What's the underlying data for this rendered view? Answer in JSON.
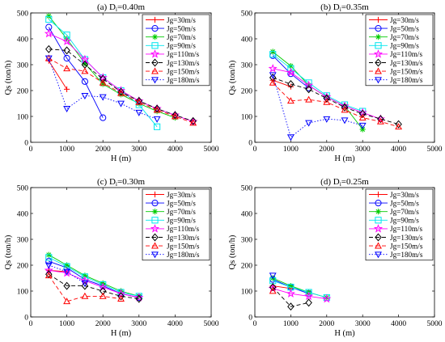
{
  "figure": {
    "series_defs": [
      {
        "name": "Jg=30m/s",
        "color": "#ff0000",
        "marker": "plus",
        "dash": ""
      },
      {
        "name": "Jg=50m/s",
        "color": "#0000ff",
        "marker": "circle",
        "dash": ""
      },
      {
        "name": "Jg=70m/s",
        "color": "#00cc00",
        "marker": "star",
        "dash": ""
      },
      {
        "name": "Jg=90m/s",
        "color": "#00e5ee",
        "marker": "square",
        "dash": ""
      },
      {
        "name": "Jg=110m/s",
        "color": "#ff00ff",
        "marker": "pentagram",
        "dash": ""
      },
      {
        "name": "Jg=130m/s",
        "color": "#000000",
        "marker": "diamond",
        "dash": "5,3"
      },
      {
        "name": "Jg=150m/s",
        "color": "#ff0000",
        "marker": "triangle-up",
        "dash": "5,3"
      },
      {
        "name": "Jg=180m/s",
        "color": "#0000ff",
        "marker": "triangle-down",
        "dash": "1.5,2"
      }
    ]
  },
  "chart_data": [
    {
      "type": "line",
      "title": "(a) D",
      "title_sub": "i",
      "title_tail": "=0.40m",
      "xlabel": "H (m)",
      "ylabel": "Qs (ton/h)",
      "xlim": [
        0,
        5000
      ],
      "ylim": [
        0,
        500
      ],
      "xticks": [
        0,
        1000,
        2000,
        3000,
        4000,
        5000
      ],
      "yticks": [
        0,
        100,
        200,
        300,
        400,
        500
      ],
      "legend_position": "top-right",
      "series": [
        {
          "name": "Jg=30m/s",
          "x": [
            500,
            1000
          ],
          "y": [
            315,
            205
          ]
        },
        {
          "name": "Jg=50m/s",
          "x": [
            500,
            1000,
            1500,
            2000
          ],
          "y": [
            445,
            325,
            235,
            95
          ]
        },
        {
          "name": "Jg=70m/s",
          "x": [
            500,
            1000,
            1500,
            2000,
            2500,
            3000,
            3500,
            4000
          ],
          "y": [
            488,
            400,
            305,
            225,
            185,
            150,
            120,
            95
          ]
        },
        {
          "name": "Jg=90m/s",
          "x": [
            500,
            1000,
            1500,
            2000,
            2500,
            3000,
            3500
          ],
          "y": [
            475,
            415,
            320,
            250,
            200,
            145,
            60
          ]
        },
        {
          "name": "Jg=110m/s",
          "x": [
            500,
            1000,
            1500,
            2000,
            2500,
            3000,
            3500,
            4000,
            4500
          ],
          "y": [
            420,
            390,
            320,
            250,
            200,
            160,
            130,
            105,
            80
          ]
        },
        {
          "name": "Jg=130m/s",
          "x": [
            500,
            1000,
            1500,
            2000,
            2500,
            3000,
            3500,
            4000,
            4500
          ],
          "y": [
            360,
            355,
            300,
            245,
            195,
            160,
            130,
            105,
            82
          ]
        },
        {
          "name": "Jg=150m/s",
          "x": [
            500,
            1000,
            1500,
            2000,
            2500,
            3000,
            3500,
            4000,
            4500
          ],
          "y": [
            325,
            285,
            275,
            230,
            190,
            155,
            125,
            100,
            75
          ]
        },
        {
          "name": "Jg=180m/s",
          "x": [
            500,
            1000,
            1500,
            2000,
            2500,
            3000,
            3500
          ],
          "y": [
            325,
            130,
            180,
            175,
            150,
            115,
            90
          ]
        }
      ]
    },
    {
      "type": "line",
      "title": "(b) D",
      "title_sub": "i",
      "title_tail": "=0.35m",
      "xlabel": "H (m)",
      "ylabel": "Qs (ton/h)",
      "xlim": [
        0,
        5000
      ],
      "ylim": [
        0,
        500
      ],
      "xticks": [
        0,
        1000,
        2000,
        3000,
        4000,
        5000
      ],
      "yticks": [
        0,
        100,
        200,
        300,
        400,
        500
      ],
      "legend_position": "top-right",
      "series": [
        {
          "name": "Jg=30m/s",
          "x": [
            500,
            1000
          ],
          "y": [
            240,
            215
          ]
        },
        {
          "name": "Jg=50m/s",
          "x": [
            500,
            1000,
            1500
          ],
          "y": [
            335,
            265,
            210
          ]
        },
        {
          "name": "Jg=70m/s",
          "x": [
            500,
            1000,
            1500,
            2000,
            2500,
            3000
          ],
          "y": [
            350,
            295,
            220,
            175,
            140,
            50
          ]
        },
        {
          "name": "Jg=90m/s",
          "x": [
            500,
            1000,
            1500,
            2000,
            2500,
            3000
          ],
          "y": [
            340,
            285,
            230,
            180,
            145,
            120
          ]
        },
        {
          "name": "Jg=110m/s",
          "x": [
            500,
            1000,
            1500,
            2000,
            2500,
            3000,
            3500
          ],
          "y": [
            285,
            270,
            220,
            175,
            140,
            115,
            90
          ]
        },
        {
          "name": "Jg=130m/s",
          "x": [
            500,
            1000,
            1500,
            2000,
            2500,
            3000,
            3500,
            4000
          ],
          "y": [
            250,
            225,
            205,
            170,
            135,
            110,
            90,
            70
          ]
        },
        {
          "name": "Jg=150m/s",
          "x": [
            500,
            1000,
            1500,
            2000,
            2500,
            3000,
            3500,
            4000
          ],
          "y": [
            230,
            160,
            165,
            155,
            125,
            95,
            80,
            60
          ]
        },
        {
          "name": "Jg=180m/s",
          "x": [
            500,
            1000,
            1500,
            2000,
            2500,
            3000
          ],
          "y": [
            260,
            20,
            75,
            90,
            85,
            65
          ]
        }
      ]
    },
    {
      "type": "line",
      "title": "(c) D",
      "title_sub": "i",
      "title_tail": "=0.30m",
      "xlabel": "H (m)",
      "ylabel": "Qs (ton/h)",
      "xlim": [
        0,
        5000
      ],
      "ylim": [
        0,
        500
      ],
      "xticks": [
        0,
        1000,
        2000,
        3000,
        4000,
        5000
      ],
      "yticks": [
        0,
        100,
        200,
        300,
        400,
        500
      ],
      "legend_position": "top-right",
      "series": [
        {
          "name": "Jg=30m/s",
          "x": [
            500,
            1000
          ],
          "y": [
            180,
            175
          ]
        },
        {
          "name": "Jg=50m/s",
          "x": [
            500,
            1000,
            1500,
            2000,
            2500,
            3000
          ],
          "y": [
            215,
            190,
            145,
            120,
            90,
            75
          ]
        },
        {
          "name": "Jg=70m/s",
          "x": [
            500,
            1000,
            1500,
            2000,
            2500,
            3000
          ],
          "y": [
            240,
            200,
            160,
            130,
            100,
            80
          ]
        },
        {
          "name": "Jg=90m/s",
          "x": [
            500,
            1000,
            1500,
            2000,
            2500,
            3000
          ],
          "y": [
            230,
            195,
            155,
            125,
            95,
            80
          ]
        },
        {
          "name": "Jg=110m/s",
          "x": [
            500,
            1000,
            1500,
            2000,
            2500,
            3000
          ],
          "y": [
            180,
            170,
            140,
            115,
            90,
            75
          ]
        },
        {
          "name": "Jg=130m/s",
          "x": [
            500,
            1000,
            1500,
            2000,
            2500,
            3000
          ],
          "y": [
            165,
            120,
            120,
            100,
            80,
            70
          ]
        },
        {
          "name": "Jg=150m/s",
          "x": [
            500,
            1000,
            1500,
            2000,
            2500
          ],
          "y": [
            160,
            60,
            80,
            80,
            70
          ]
        },
        {
          "name": "Jg=180m/s",
          "x": [
            500,
            1000,
            1500
          ],
          "y": [
            200,
            175,
            130
          ]
        }
      ]
    },
    {
      "type": "line",
      "title": "(d) D",
      "title_sub": "i",
      "title_tail": "=0.25m",
      "xlabel": "H (m)",
      "ylabel": "Qs (ton/h)",
      "xlim": [
        0,
        5000
      ],
      "ylim": [
        0,
        500
      ],
      "xticks": [
        0,
        1000,
        2000,
        3000,
        4000,
        5000
      ],
      "yticks": [
        0,
        100,
        200,
        300,
        400,
        500
      ],
      "legend_position": "top-right",
      "series": [
        {
          "name": "Jg=30m/s",
          "x": [
            500,
            1000
          ],
          "y": [
            120,
            110
          ]
        },
        {
          "name": "Jg=50m/s",
          "x": [
            500,
            1000,
            1500
          ],
          "y": [
            145,
            115,
            90
          ]
        },
        {
          "name": "Jg=70m/s",
          "x": [
            500,
            1000,
            1500,
            2000
          ],
          "y": [
            150,
            120,
            95,
            75
          ]
        },
        {
          "name": "Jg=90m/s",
          "x": [
            500,
            1000,
            1500,
            2000
          ],
          "y": [
            140,
            115,
            95,
            75
          ]
        },
        {
          "name": "Jg=110m/s",
          "x": [
            500,
            1000,
            1500,
            2000
          ],
          "y": [
            110,
            90,
            80,
            70
          ]
        },
        {
          "name": "Jg=130m/s",
          "x": [
            500,
            1000,
            1500
          ],
          "y": [
            115,
            40,
            55
          ]
        },
        {
          "name": "Jg=150m/s",
          "x": [
            500
          ],
          "y": [
            100
          ]
        },
        {
          "name": "Jg=180m/s",
          "x": [
            500
          ],
          "y": [
            160
          ]
        }
      ]
    }
  ]
}
